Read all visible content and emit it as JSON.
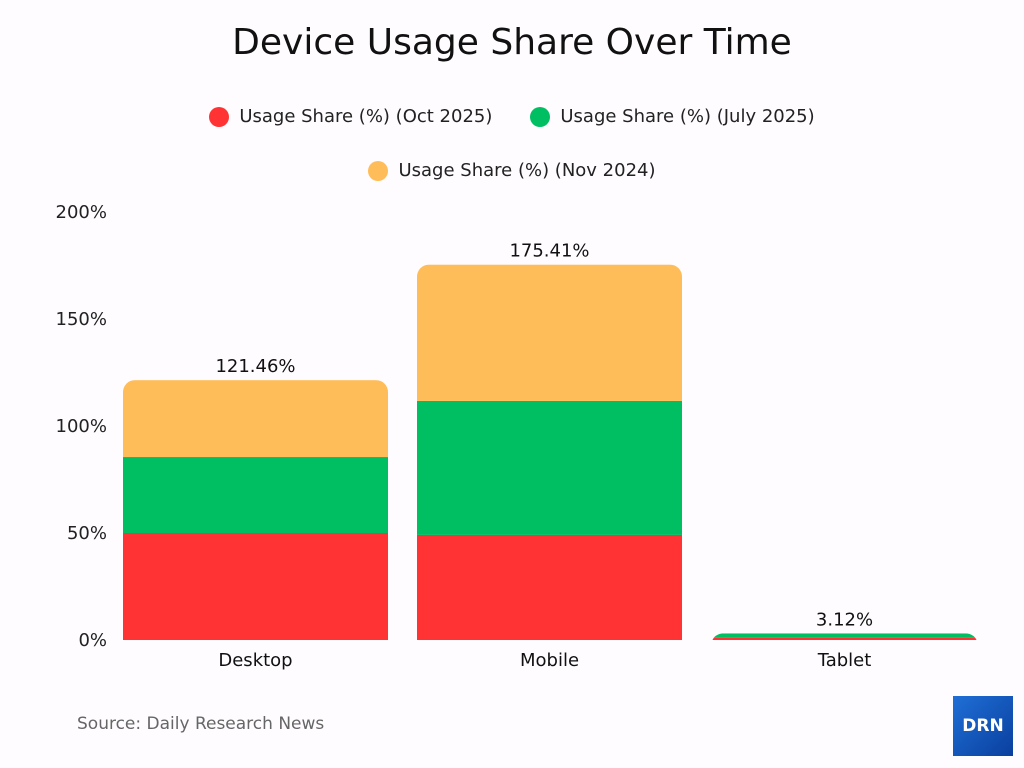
{
  "chart_data": {
    "type": "bar",
    "stacked": true,
    "title": "Device Usage Share Over Time",
    "categories": [
      "Desktop",
      "Mobile",
      "Tablet"
    ],
    "series": [
      {
        "name": "Usage Share (%) (Oct 2025)",
        "color": "#ff3333",
        "values": [
          50.0,
          49.1,
          1.1
        ]
      },
      {
        "name": "Usage Share (%) (July 2025)",
        "color": "#00bf63",
        "values": [
          35.5,
          62.6,
          2.02
        ]
      },
      {
        "name": "Usage Share (%) (Nov 2024)",
        "color": "#ffbd59",
        "values": [
          35.96,
          63.71,
          0
        ]
      }
    ],
    "totals": [
      "121.46%",
      "175.41%",
      "3.12%"
    ],
    "yticks": [
      "0%",
      "50%",
      "100%",
      "150%",
      "200%"
    ],
    "ylim": [
      0,
      200
    ],
    "grid": false,
    "legend": "top-center"
  },
  "source": "Source: Daily Research News",
  "logo_text": "DRN"
}
